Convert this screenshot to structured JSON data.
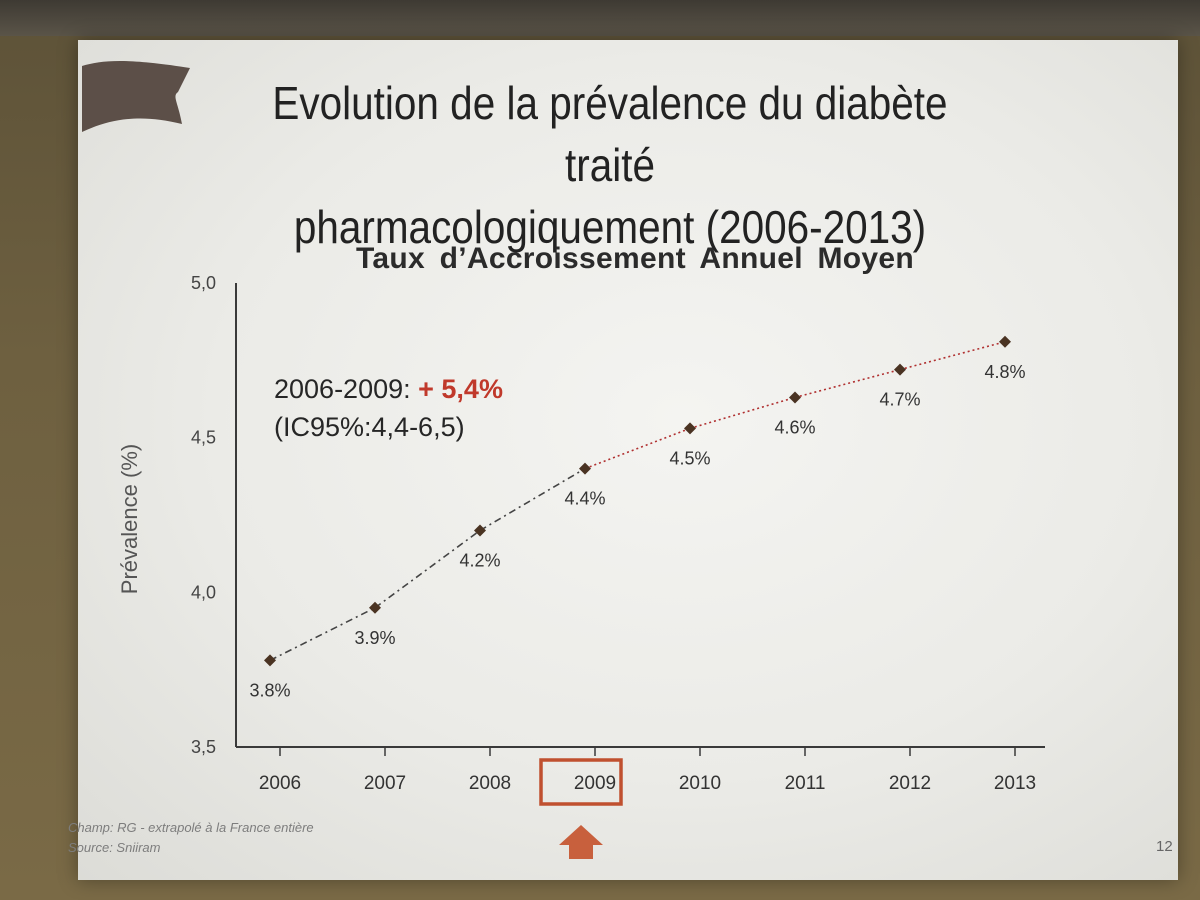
{
  "slide": {
    "title_lines": [
      "Evolution de la prévalence du diabète traité",
      "pharmacologiquement (2006-2013)"
    ],
    "page_number": "12"
  },
  "annotation": {
    "period": "2006-2009:",
    "rate": "+ 5,4%",
    "ci": "(IC95%:4,4-6,5)"
  },
  "footnotes": {
    "champ": "Champ: RG - extrapolé à la France entière",
    "source": "Source: Sniiram"
  },
  "chart_data": {
    "type": "line",
    "title": "Taux d’Accroissement  Annuel Moyen",
    "ylabel": "Prévalence (%)",
    "xlabel": "",
    "categories": [
      "2006",
      "2007",
      "2008",
      "2009",
      "2010",
      "2011",
      "2012",
      "2013"
    ],
    "values": [
      3.78,
      3.95,
      4.2,
      4.4,
      4.53,
      4.63,
      4.72,
      4.81
    ],
    "data_labels": [
      "3.8%",
      "3.9%",
      "4.2%",
      "4.4%",
      "4.5%",
      "4.6%",
      "4.7%",
      "4.8%"
    ],
    "y_ticks": [
      "3,5",
      "4,0",
      "4,5",
      "5,0"
    ],
    "ylim": [
      3.5,
      5.0
    ],
    "highlight_category": "2009",
    "grid": false,
    "colors": {
      "marker": "#4a3322",
      "segment_before": "#444444",
      "segment_after": "#b03030",
      "highlight": "#c0502f",
      "arrow": "#c8603d",
      "annotation_rate": "#c0392b"
    }
  }
}
